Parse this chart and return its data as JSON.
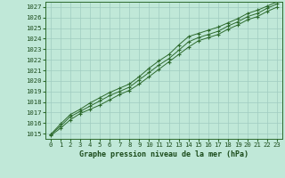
{
  "x": [
    0,
    1,
    2,
    3,
    4,
    5,
    6,
    7,
    8,
    9,
    10,
    11,
    12,
    13,
    14,
    15,
    16,
    17,
    18,
    19,
    20,
    21,
    22,
    23
  ],
  "line1": [
    1014.8,
    1015.5,
    1016.3,
    1016.9,
    1017.3,
    1017.7,
    1018.2,
    1018.7,
    1019.1,
    1019.7,
    1020.4,
    1021.1,
    1021.8,
    1022.5,
    1023.2,
    1023.8,
    1024.1,
    1024.4,
    1024.9,
    1025.3,
    1025.8,
    1026.1,
    1026.6,
    1027.0
  ],
  "line2": [
    1014.9,
    1015.7,
    1016.6,
    1017.1,
    1017.6,
    1018.1,
    1018.6,
    1019.0,
    1019.4,
    1020.1,
    1020.8,
    1021.5,
    1022.1,
    1022.9,
    1023.7,
    1024.1,
    1024.4,
    1024.7,
    1025.2,
    1025.6,
    1026.1,
    1026.4,
    1026.9,
    1027.3
  ],
  "line3": [
    1014.9,
    1015.9,
    1016.8,
    1017.3,
    1017.9,
    1018.4,
    1018.9,
    1019.3,
    1019.7,
    1020.4,
    1021.2,
    1021.9,
    1022.5,
    1023.4,
    1024.2,
    1024.5,
    1024.8,
    1025.1,
    1025.5,
    1025.9,
    1026.4,
    1026.7,
    1027.1,
    1027.5
  ],
  "ylim": [
    1014.5,
    1027.5
  ],
  "yticks": [
    1015,
    1016,
    1017,
    1018,
    1019,
    1020,
    1021,
    1022,
    1023,
    1024,
    1025,
    1026,
    1027
  ],
  "xlim": [
    -0.5,
    23.5
  ],
  "xticks": [
    0,
    1,
    2,
    3,
    4,
    5,
    6,
    7,
    8,
    9,
    10,
    11,
    12,
    13,
    14,
    15,
    16,
    17,
    18,
    19,
    20,
    21,
    22,
    23
  ],
  "line_color": "#2d6a2d",
  "bg_color": "#c0e8d8",
  "grid_color": "#a0ccc0",
  "xlabel": "Graphe pression niveau de la mer (hPa)",
  "xlabel_color": "#1a4a1a",
  "tick_fontsize": 5.2,
  "xlabel_fontsize": 6.0
}
